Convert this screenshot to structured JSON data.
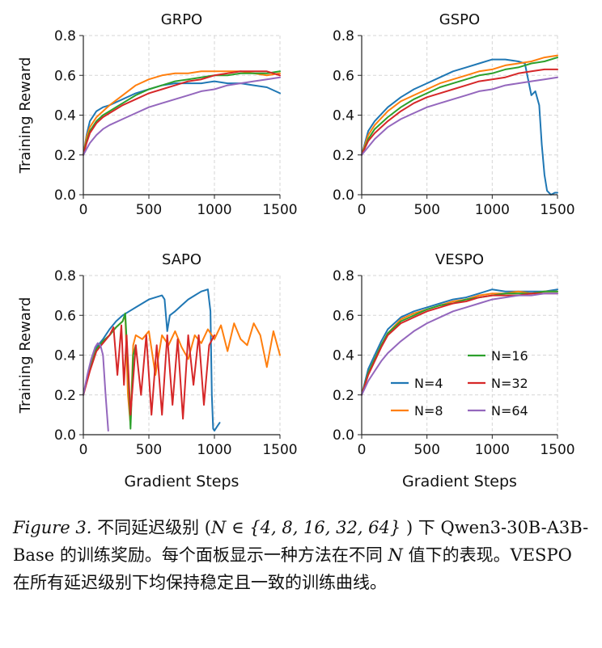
{
  "chart_data": [
    {
      "type": "line",
      "title": "GRPO",
      "xlabel": "",
      "ylabel": "Training Reward",
      "xlim": [
        0,
        1500
      ],
      "ylim": [
        0,
        0.8
      ],
      "xticks": [
        "0",
        "500",
        "1000",
        "1500"
      ],
      "yticks": [
        "0.0",
        "0.2",
        "0.4",
        "0.6",
        "0.8"
      ],
      "grid": true,
      "series": [
        {
          "name": "N=4",
          "color": "#1f77b4",
          "x": [
            0,
            25,
            50,
            100,
            150,
            200,
            300,
            400,
            500,
            600,
            700,
            800,
            900,
            1000,
            1100,
            1200,
            1300,
            1400,
            1500
          ],
          "y": [
            0.2,
            0.3,
            0.37,
            0.42,
            0.44,
            0.45,
            0.48,
            0.51,
            0.53,
            0.55,
            0.56,
            0.56,
            0.56,
            0.57,
            0.56,
            0.56,
            0.55,
            0.54,
            0.51
          ]
        },
        {
          "name": "N=8",
          "color": "#ff7f0e",
          "x": [
            0,
            25,
            50,
            100,
            150,
            200,
            300,
            400,
            500,
            600,
            700,
            800,
            900,
            1000,
            1100,
            1200,
            1300,
            1400,
            1500
          ],
          "y": [
            0.2,
            0.29,
            0.34,
            0.39,
            0.42,
            0.45,
            0.5,
            0.55,
            0.58,
            0.6,
            0.61,
            0.61,
            0.62,
            0.62,
            0.62,
            0.62,
            0.61,
            0.6,
            0.61
          ]
        },
        {
          "name": "N=16",
          "color": "#2ca02c",
          "x": [
            0,
            25,
            50,
            100,
            150,
            200,
            300,
            400,
            500,
            600,
            700,
            800,
            900,
            1000,
            1100,
            1200,
            1300,
            1400,
            1500
          ],
          "y": [
            0.2,
            0.27,
            0.32,
            0.37,
            0.4,
            0.42,
            0.46,
            0.5,
            0.53,
            0.55,
            0.57,
            0.58,
            0.59,
            0.6,
            0.6,
            0.61,
            0.61,
            0.61,
            0.62
          ]
        },
        {
          "name": "N=32",
          "color": "#d62728",
          "x": [
            0,
            25,
            50,
            100,
            150,
            200,
            300,
            400,
            500,
            600,
            700,
            800,
            900,
            1000,
            1100,
            1200,
            1300,
            1400,
            1500
          ],
          "y": [
            0.2,
            0.26,
            0.31,
            0.36,
            0.39,
            0.41,
            0.45,
            0.48,
            0.51,
            0.53,
            0.55,
            0.57,
            0.58,
            0.6,
            0.61,
            0.62,
            0.62,
            0.62,
            0.6
          ]
        },
        {
          "name": "N=64",
          "color": "#9467bd",
          "x": [
            0,
            25,
            50,
            100,
            150,
            200,
            300,
            400,
            500,
            600,
            700,
            800,
            900,
            1000,
            1100,
            1200,
            1300,
            1400,
            1500
          ],
          "y": [
            0.2,
            0.23,
            0.26,
            0.3,
            0.33,
            0.35,
            0.38,
            0.41,
            0.44,
            0.46,
            0.48,
            0.5,
            0.52,
            0.53,
            0.55,
            0.56,
            0.57,
            0.58,
            0.59
          ]
        }
      ]
    },
    {
      "type": "line",
      "title": "GSPO",
      "xlabel": "",
      "ylabel": "",
      "xlim": [
        0,
        1500
      ],
      "ylim": [
        0,
        0.8
      ],
      "xticks": [
        "0",
        "500",
        "1000",
        "1500"
      ],
      "yticks": [
        "0.0",
        "0.2",
        "0.4",
        "0.6",
        "0.8"
      ],
      "grid": true,
      "series": [
        {
          "name": "N=4",
          "color": "#1f77b4",
          "x": [
            0,
            50,
            100,
            200,
            300,
            400,
            500,
            600,
            700,
            800,
            900,
            1000,
            1100,
            1200,
            1250,
            1300,
            1330,
            1360,
            1380,
            1400,
            1420,
            1450,
            1480,
            1500
          ],
          "y": [
            0.2,
            0.32,
            0.37,
            0.44,
            0.49,
            0.53,
            0.56,
            0.59,
            0.62,
            0.64,
            0.66,
            0.68,
            0.68,
            0.67,
            0.66,
            0.5,
            0.52,
            0.45,
            0.25,
            0.1,
            0.02,
            0.0,
            0.01,
            0.01
          ]
        },
        {
          "name": "N=8",
          "color": "#ff7f0e",
          "x": [
            0,
            50,
            100,
            200,
            300,
            400,
            500,
            600,
            700,
            800,
            900,
            1000,
            1100,
            1200,
            1300,
            1400,
            1500
          ],
          "y": [
            0.2,
            0.3,
            0.35,
            0.42,
            0.47,
            0.5,
            0.53,
            0.56,
            0.58,
            0.6,
            0.62,
            0.63,
            0.65,
            0.66,
            0.67,
            0.69,
            0.7
          ]
        },
        {
          "name": "N=16",
          "color": "#2ca02c",
          "x": [
            0,
            50,
            100,
            200,
            300,
            400,
            500,
            600,
            700,
            800,
            900,
            1000,
            1100,
            1200,
            1300,
            1400,
            1500
          ],
          "y": [
            0.2,
            0.28,
            0.33,
            0.39,
            0.44,
            0.48,
            0.51,
            0.54,
            0.56,
            0.58,
            0.6,
            0.61,
            0.63,
            0.64,
            0.66,
            0.67,
            0.69
          ]
        },
        {
          "name": "N=32",
          "color": "#d62728",
          "x": [
            0,
            50,
            100,
            200,
            300,
            400,
            500,
            600,
            700,
            800,
            900,
            1000,
            1100,
            1200,
            1300,
            1400,
            1500
          ],
          "y": [
            0.2,
            0.27,
            0.31,
            0.37,
            0.42,
            0.46,
            0.49,
            0.51,
            0.53,
            0.55,
            0.57,
            0.58,
            0.59,
            0.61,
            0.62,
            0.63,
            0.63
          ]
        },
        {
          "name": "N=64",
          "color": "#9467bd",
          "x": [
            0,
            50,
            100,
            200,
            300,
            400,
            500,
            600,
            700,
            800,
            900,
            1000,
            1100,
            1200,
            1300,
            1400,
            1500
          ],
          "y": [
            0.2,
            0.24,
            0.28,
            0.34,
            0.38,
            0.41,
            0.44,
            0.46,
            0.48,
            0.5,
            0.52,
            0.53,
            0.55,
            0.56,
            0.57,
            0.58,
            0.59
          ]
        }
      ]
    },
    {
      "type": "line",
      "title": "SAPO",
      "xlabel": "Gradient Steps",
      "ylabel": "Training Reward",
      "xlim": [
        0,
        1500
      ],
      "ylim": [
        0,
        0.8
      ],
      "xticks": [
        "0",
        "500",
        "1000",
        "1500"
      ],
      "yticks": [
        "0.0",
        "0.2",
        "0.4",
        "0.6",
        "0.8"
      ],
      "grid": true,
      "series": [
        {
          "name": "N=4",
          "color": "#1f77b4",
          "x": [
            0,
            50,
            100,
            150,
            200,
            250,
            300,
            350,
            400,
            450,
            500,
            550,
            600,
            620,
            640,
            660,
            700,
            750,
            800,
            850,
            900,
            950,
            970,
            980,
            990,
            1000,
            1020,
            1040
          ],
          "y": [
            0.2,
            0.35,
            0.44,
            0.48,
            0.53,
            0.57,
            0.6,
            0.62,
            0.64,
            0.66,
            0.68,
            0.69,
            0.7,
            0.68,
            0.52,
            0.6,
            0.62,
            0.65,
            0.68,
            0.7,
            0.72,
            0.73,
            0.62,
            0.2,
            0.03,
            0.02,
            0.04,
            0.06
          ]
        },
        {
          "name": "N=8",
          "color": "#ff7f0e",
          "x": [
            0,
            50,
            100,
            150,
            200,
            250,
            300,
            320,
            340,
            360,
            380,
            400,
            450,
            500,
            550,
            600,
            650,
            700,
            750,
            800,
            850,
            900,
            950,
            1000,
            1050,
            1100,
            1150,
            1200,
            1250,
            1300,
            1350,
            1400,
            1450,
            1500
          ],
          "y": [
            0.2,
            0.34,
            0.43,
            0.47,
            0.5,
            0.54,
            0.57,
            0.6,
            0.2,
            0.05,
            0.45,
            0.5,
            0.48,
            0.52,
            0.3,
            0.5,
            0.45,
            0.52,
            0.44,
            0.38,
            0.5,
            0.46,
            0.53,
            0.48,
            0.55,
            0.42,
            0.56,
            0.48,
            0.45,
            0.56,
            0.5,
            0.34,
            0.52,
            0.4
          ]
        },
        {
          "name": "N=16",
          "color": "#2ca02c",
          "x": [
            0,
            50,
            100,
            150,
            200,
            250,
            300,
            320,
            340,
            360,
            380,
            400
          ],
          "y": [
            0.2,
            0.33,
            0.43,
            0.47,
            0.5,
            0.54,
            0.57,
            0.61,
            0.35,
            0.03,
            0.4,
            0.45
          ]
        },
        {
          "name": "N=32",
          "color": "#d62728",
          "x": [
            0,
            50,
            100,
            150,
            200,
            230,
            260,
            290,
            310,
            330,
            360,
            400,
            440,
            480,
            520,
            560,
            600,
            640,
            680,
            720,
            760,
            800,
            840,
            880,
            920,
            960,
            1000
          ],
          "y": [
            0.2,
            0.32,
            0.42,
            0.46,
            0.5,
            0.54,
            0.3,
            0.55,
            0.25,
            0.5,
            0.1,
            0.45,
            0.2,
            0.5,
            0.1,
            0.45,
            0.1,
            0.5,
            0.15,
            0.48,
            0.08,
            0.5,
            0.25,
            0.5,
            0.15,
            0.45,
            0.5
          ]
        },
        {
          "name": "N=64",
          "color": "#9467bd",
          "x": [
            0,
            30,
            60,
            90,
            110,
            130,
            150,
            170,
            190
          ],
          "y": [
            0.2,
            0.3,
            0.38,
            0.44,
            0.46,
            0.45,
            0.4,
            0.2,
            0.02
          ]
        }
      ]
    },
    {
      "type": "line",
      "title": "VESPO",
      "xlabel": "Gradient Steps",
      "ylabel": "",
      "xlim": [
        0,
        1500
      ],
      "ylim": [
        0,
        0.8
      ],
      "xticks": [
        "0",
        "500",
        "1000",
        "1500"
      ],
      "yticks": [
        "0.0",
        "0.2",
        "0.4",
        "0.6",
        "0.8"
      ],
      "legend": "lower-right",
      "grid": true,
      "series": [
        {
          "name": "N=4",
          "color": "#1f77b4",
          "x": [
            0,
            50,
            100,
            150,
            200,
            300,
            400,
            500,
            600,
            700,
            800,
            900,
            1000,
            1100,
            1200,
            1300,
            1400,
            1500
          ],
          "y": [
            0.2,
            0.33,
            0.4,
            0.47,
            0.53,
            0.59,
            0.62,
            0.64,
            0.66,
            0.68,
            0.69,
            0.71,
            0.73,
            0.72,
            0.72,
            0.72,
            0.72,
            0.73
          ]
        },
        {
          "name": "N=8",
          "color": "#ff7f0e",
          "x": [
            0,
            50,
            100,
            150,
            200,
            300,
            400,
            500,
            600,
            700,
            800,
            900,
            1000,
            1100,
            1200,
            1300,
            1400,
            1500
          ],
          "y": [
            0.2,
            0.31,
            0.38,
            0.45,
            0.51,
            0.58,
            0.61,
            0.63,
            0.65,
            0.67,
            0.68,
            0.7,
            0.71,
            0.71,
            0.72,
            0.71,
            0.72,
            0.72
          ]
        },
        {
          "name": "N=16",
          "color": "#2ca02c",
          "x": [
            0,
            50,
            100,
            150,
            200,
            300,
            400,
            500,
            600,
            700,
            800,
            900,
            1000,
            1100,
            1200,
            1300,
            1400,
            1500
          ],
          "y": [
            0.2,
            0.31,
            0.38,
            0.45,
            0.51,
            0.57,
            0.6,
            0.63,
            0.65,
            0.66,
            0.68,
            0.69,
            0.7,
            0.71,
            0.71,
            0.71,
            0.72,
            0.72
          ]
        },
        {
          "name": "N=32",
          "color": "#d62728",
          "x": [
            0,
            50,
            100,
            150,
            200,
            300,
            400,
            500,
            600,
            700,
            800,
            900,
            1000,
            1100,
            1200,
            1300,
            1400,
            1500
          ],
          "y": [
            0.2,
            0.3,
            0.37,
            0.44,
            0.5,
            0.56,
            0.59,
            0.62,
            0.64,
            0.66,
            0.67,
            0.69,
            0.7,
            0.7,
            0.7,
            0.71,
            0.71,
            0.71
          ]
        },
        {
          "name": "N=64",
          "color": "#9467bd",
          "x": [
            0,
            50,
            100,
            150,
            200,
            300,
            400,
            500,
            600,
            700,
            800,
            900,
            1000,
            1100,
            1200,
            1300,
            1400,
            1500
          ],
          "y": [
            0.2,
            0.27,
            0.32,
            0.37,
            0.41,
            0.47,
            0.52,
            0.56,
            0.59,
            0.62,
            0.64,
            0.66,
            0.68,
            0.69,
            0.7,
            0.7,
            0.71,
            0.71
          ]
        }
      ]
    }
  ],
  "caption": {
    "label": "Figure 3.",
    "text_a": " 不同延迟级别 (",
    "math": "N ∈ {4, 8, 16, 32, 64}",
    "text_b": " ) 下 Qwen3-30B-A3B-Base 的训练奖励。每个面板显示一种方法在不同 ",
    "math_n": "N",
    "text_c": " 值下的表现。VESPO 在所有延迟级别下均保持稳定且一致的训练曲线。"
  }
}
